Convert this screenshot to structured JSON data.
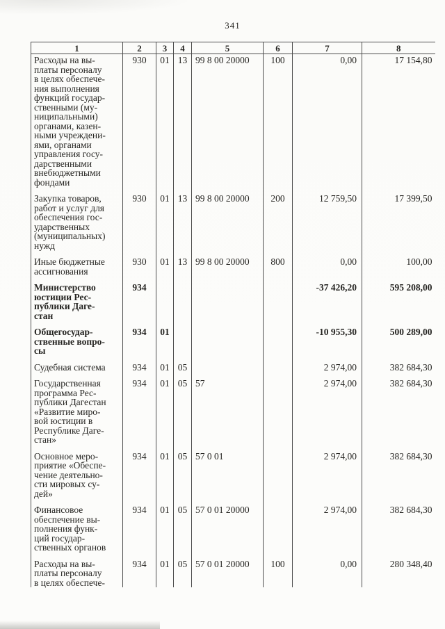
{
  "palette": {
    "paper": "#fbfbf9",
    "ink": "#262522",
    "line": "#4d4d4d"
  },
  "page": {
    "number": "341"
  },
  "table": {
    "header_cols": [
      "1",
      "2",
      "3",
      "4",
      "5",
      "6",
      "7",
      "8"
    ],
    "rows": [
      {
        "name": "Расходы на вы-\nплаты персоналу\nв целях обеспече-\nния выполнения\nфункций государ-\nственными (му-\nниципальными)\nорганами, казен-\nными учреждени-\nями, органами\nуправления госу-\nдарственными\nвнебюджетными\nфондами",
        "c2": "930",
        "c3": "01",
        "c4": "13",
        "c5": "99 8 00 20000",
        "c6": "100",
        "c7": "0,00",
        "c8": "17 154,80",
        "bold": false
      },
      {
        "name": "Закупка товаров,\nработ и услуг для\nобеспечения гос-\nударственных\n(муниципальных)\nнужд",
        "c2": "930",
        "c3": "01",
        "c4": "13",
        "c5": "99 8 00 20000",
        "c6": "200",
        "c7": "12 759,50",
        "c8": "17 399,50",
        "bold": false
      },
      {
        "name": "Иные бюджетные\nассигнования",
        "c2": "930",
        "c3": "01",
        "c4": "13",
        "c5": "99 8 00 20000",
        "c6": "800",
        "c7": "0,00",
        "c8": "100,00",
        "bold": false
      },
      {
        "name": "Министерство\nюстиции Рес-\nпублики Даге-\nстан",
        "c2": "934",
        "c3": "",
        "c4": "",
        "c5": "",
        "c6": "",
        "c7": "-37 426,20",
        "c8": "595 208,00",
        "bold": true
      },
      {
        "name": "Общегосудар-\nственные вопро-\nсы",
        "c2": "934",
        "c3": "01",
        "c4": "",
        "c5": "",
        "c6": "",
        "c7": "-10 955,30",
        "c8": "500 289,00",
        "bold": true
      },
      {
        "name": "Судебная система",
        "c2": "934",
        "c3": "01",
        "c4": "05",
        "c5": "",
        "c6": "",
        "c7": "2 974,00",
        "c8": "382 684,30",
        "bold": false
      },
      {
        "name": "Государственная\nпрограмма Рес-\nпублики Дагестан\n«Развитие миро-\nвой юстиции в\nРеспублике Даге-\nстан»",
        "c2": "934",
        "c3": "01",
        "c4": "05",
        "c5": "57",
        "c6": "",
        "c7": "2 974,00",
        "c8": "382 684,30",
        "bold": false
      },
      {
        "name": "Основное меро-\nприятие «Обеспе-\nчение деятельно-\nсти мировых су-\nдей»",
        "c2": "934",
        "c3": "01",
        "c4": "05",
        "c5": "57 0 01",
        "c6": "",
        "c7": "2 974,00",
        "c8": "382 684,30",
        "bold": false
      },
      {
        "name": "Финансовое\nобеспечение вы-\nполнения функ-\nций государ-\nственных органов",
        "c2": "934",
        "c3": "01",
        "c4": "05",
        "c5": "57 0 01 20000",
        "c6": "",
        "c7": "2 974,00",
        "c8": "382 684,30",
        "bold": false
      },
      {
        "name": "Расходы на вы-\nплаты персоналу\nв целях обеспече-",
        "c2": "934",
        "c3": "01",
        "c4": "05",
        "c5": "57 0 01 20000",
        "c6": "100",
        "c7": "0,00",
        "c8": "280 348,40",
        "bold": false
      }
    ]
  }
}
